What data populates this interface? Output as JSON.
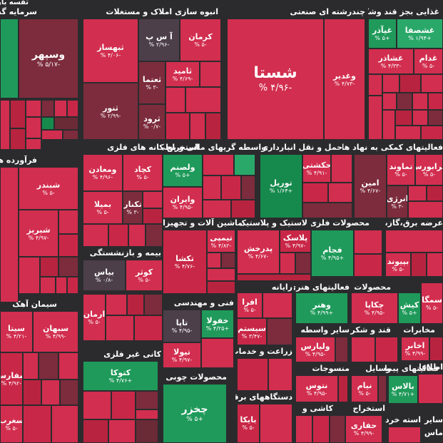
{
  "sectors": [
    {
      "key": "investment",
      "title": "سرمایه گذا",
      "sub": "تفسه بارو"
    },
    {
      "key": "realestate",
      "title": "انبوه سازی املاک و مستغلات"
    },
    {
      "key": "multi",
      "title": "چندرشته ای صنعتی"
    },
    {
      "key": "food",
      "title": "غذایی بجز قند وشکر"
    },
    {
      "key": "refinery",
      "title": "فرآورده های"
    },
    {
      "key": "metalextract",
      "title": "استخراج کانه های فلزی"
    },
    {
      "key": "financial",
      "title": "واسطه گریهای مالی و پولی"
    },
    {
      "key": "transport",
      "title": "حمل و نقل انبارداری و"
    },
    {
      "key": "supportact",
      "title": "فعالیتهای کمکی به نهاد های"
    },
    {
      "key": "electric",
      "title": "عرضه برق،گاز،بخار و"
    },
    {
      "key": "machinery",
      "title": "ماشین آلات و تجهیزات"
    },
    {
      "key": "rubber",
      "title": "لاستیک و پلاستیک"
    },
    {
      "key": "metalprod",
      "title": "محصولات فلزی"
    },
    {
      "key": "insurance",
      "title": "بیمه و بازنشستگی"
    },
    {
      "key": "cement",
      "title": "سیمان آهک"
    },
    {
      "key": "engineering",
      "title": "فنی و مهندسی"
    },
    {
      "key": "computer",
      "title": "رایانه"
    },
    {
      "key": "art",
      "title": "فعالیتهای هنری"
    },
    {
      "key": "products",
      "title": "محصولات"
    },
    {
      "key": "telecom",
      "title": "مخابرات"
    },
    {
      "key": "nonmetal",
      "title": "کانی غیر فلزی"
    },
    {
      "key": "farming",
      "title": "زراعت و خدمات"
    },
    {
      "key": "othermed",
      "title": "سایر واسطه"
    },
    {
      "key": "sugar",
      "title": "قند و شکر"
    },
    {
      "key": "textile",
      "title": "منسوجات"
    },
    {
      "key": "vehicle",
      "title": "وسایل"
    },
    {
      "key": "contracting",
      "title": "فعالیتهای پیمانکاری"
    },
    {
      "key": "info",
      "title": "اطلاعات"
    },
    {
      "key": "wood",
      "title": "محصولات چوبی"
    },
    {
      "key": "appliances",
      "title": "دستگاههای برقی"
    },
    {
      "key": "tile",
      "title": "کاشی و"
    },
    {
      "key": "extraction",
      "title": "استخراج"
    },
    {
      "key": "other",
      "title": "سایر"
    },
    {
      "key": "tired",
      "title": "استه خرده"
    },
    {
      "key": "ast",
      "title": "ماس است"
    }
  ],
  "symbols": [
    {
      "name": "وسپهر",
      "change": "-۵/۱۷ %"
    },
    {
      "name": "ثبهساز",
      "change": "-۴/۰۶ %"
    },
    {
      "name": "آ س پ",
      "change": "-۲/۹۶ %"
    },
    {
      "name": "کرمان",
      "change": "-۵ %"
    },
    {
      "name": "ثامید",
      "change": "-۴/۶۹ %"
    },
    {
      "name": "ثعتما",
      "change": "-۳ %"
    },
    {
      "name": "ثنور",
      "change": "-۲/۹۹ %"
    },
    {
      "name": "ثرود",
      "change": "-۰/۷ %"
    },
    {
      "name": "شستا",
      "change": "-۴/۹۶ %"
    },
    {
      "name": "وغدیر",
      "change": "-۴/۷۳ %"
    },
    {
      "name": "غپآذر",
      "change": "+۵ %"
    },
    {
      "name": "غشصفا",
      "change": "+۱/۹۴ %"
    },
    {
      "name": "غشاذر",
      "change": "-۴/۳۳ %"
    },
    {
      "name": "غدام",
      "change": "-۵ %"
    },
    {
      "name": "شبندر",
      "change": "-۵ %"
    },
    {
      "name": "شبریز",
      "change": "-۴/۹۷ %"
    },
    {
      "name": "کچاد",
      "change": "-۵ %"
    },
    {
      "name": "ومعادن",
      "change": "-۴/۹۶ %"
    },
    {
      "name": "بمیلا",
      "change": "-۵ %"
    },
    {
      "name": "تکنار",
      "change": "-۳ %"
    },
    {
      "name": "ولصنم",
      "change": "+۵ %"
    },
    {
      "name": "وایران",
      "change": "-۴/۹۵ %"
    },
    {
      "name": "حکشتی",
      "change": "-۴/۹۱ %"
    },
    {
      "name": "توریل",
      "change": "+۱/۶۴ %"
    },
    {
      "name": "امین",
      "change": "-۴/۶۷ %"
    },
    {
      "name": "تماوند",
      "change": "-۵ %"
    },
    {
      "name": "فرابورس",
      "change": "-۵ %"
    },
    {
      "name": "انرژی",
      "change": "-۳ %"
    },
    {
      "name": "بیاس",
      "change": "-۰/۸ %"
    },
    {
      "name": "کوثر",
      "change": "-۵ %"
    },
    {
      "name": "تکشا",
      "change": "-۴/۷۶ %"
    },
    {
      "name": "تیمپی",
      "change": "-۴/۸۲ %"
    },
    {
      "name": "پدرخش",
      "change": "-۴/۶۷ %"
    },
    {
      "name": "پلاسک",
      "change": "-۴/۹۷ %"
    },
    {
      "name": "فجام",
      "change": "+۴/۹۵ %"
    },
    {
      "name": "بپیوند",
      "change": "-۵ %"
    },
    {
      "name": "ارمان",
      "change": "-۵ %"
    },
    {
      "name": "سیتا",
      "change": "-۴/۲۱ %"
    },
    {
      "name": "سبهان",
      "change": "-۴/۹۹ %"
    },
    {
      "name": "تاپا",
      "change": "-۴/۹۵ %"
    },
    {
      "name": "خفولا",
      "change": "+۴/۲۵ %"
    },
    {
      "name": "افرا",
      "change": "-۵ %"
    },
    {
      "name": "سیستم",
      "change": "-۳/۴۷ %"
    },
    {
      "name": "وهنر",
      "change": "+۴/۹۹ %"
    },
    {
      "name": "چکاپا",
      "change": "-۴/۹۵ %"
    },
    {
      "name": "کیش",
      "change": "+۵ %"
    },
    {
      "name": "سمگا",
      "change": "-۵ %"
    },
    {
      "name": "اخابر",
      "change": "-۴/۹۹ %"
    },
    {
      "name": "سفارس",
      "change": "-۴/۹۲ %"
    },
    {
      "name": "سغرب",
      "change": "-۵ %"
    },
    {
      "name": "کتوکا",
      "change": "+۴/۷۶ %"
    },
    {
      "name": "تیولا",
      "change": "-۴/۹۷ %"
    },
    {
      "name": "ولپارس",
      "change": "-۴/۹۵ %"
    },
    {
      "name": "نتوس",
      "change": "-۴/۹۵ %"
    },
    {
      "name": "نیام",
      "change": "-۵ %"
    },
    {
      "name": "بالاس",
      "change": "+۴/۷۱ %"
    },
    {
      "name": "چخزر",
      "change": "+۵ %"
    },
    {
      "name": "بایکا",
      "change": "-۵ %"
    },
    {
      "name": "حفاری",
      "change": "-۴/۹۹ %"
    }
  ]
}
